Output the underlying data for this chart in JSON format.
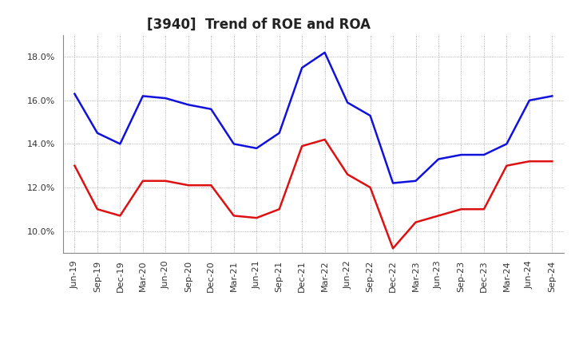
{
  "title": "[3940]  Trend of ROE and ROA",
  "x_labels": [
    "Jun-19",
    "Sep-19",
    "Dec-19",
    "Mar-20",
    "Jun-20",
    "Sep-20",
    "Dec-20",
    "Mar-21",
    "Jun-21",
    "Sep-21",
    "Dec-21",
    "Mar-22",
    "Jun-22",
    "Sep-22",
    "Dec-22",
    "Mar-23",
    "Jun-23",
    "Sep-23",
    "Dec-23",
    "Mar-24",
    "Jun-24",
    "Sep-24"
  ],
  "roe": [
    13.0,
    11.0,
    10.7,
    12.3,
    12.3,
    12.1,
    12.1,
    10.7,
    10.6,
    11.0,
    13.9,
    14.2,
    12.6,
    12.0,
    9.2,
    10.4,
    10.7,
    11.0,
    11.0,
    13.0,
    13.2,
    13.2
  ],
  "roa": [
    16.3,
    14.5,
    14.0,
    16.2,
    16.1,
    15.8,
    15.6,
    14.0,
    13.8,
    14.5,
    17.5,
    18.2,
    15.9,
    15.3,
    12.2,
    12.3,
    13.3,
    13.5,
    13.5,
    14.0,
    16.0,
    16.2
  ],
  "roe_color": "#dd1111",
  "roa_color": "#1111dd",
  "background_color": "#ffffff",
  "grid_color": "#999999",
  "ylim": [
    9.0,
    19.0
  ],
  "yticks": [
    10.0,
    12.0,
    14.0,
    16.0,
    18.0
  ],
  "line_width": 1.8,
  "title_fontsize": 12,
  "tick_fontsize": 8,
  "legend_fontsize": 10
}
